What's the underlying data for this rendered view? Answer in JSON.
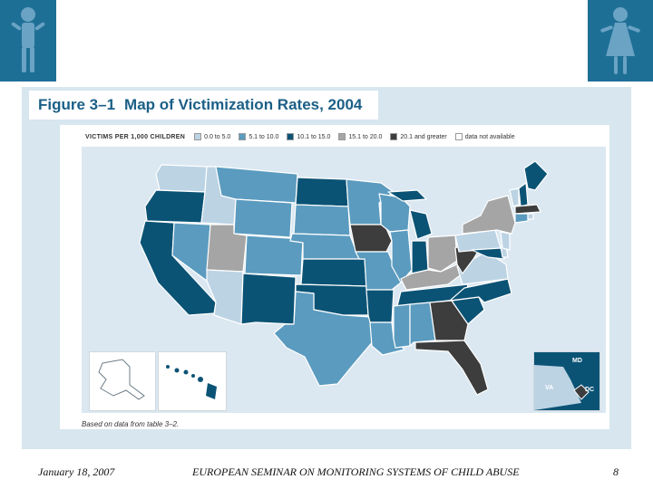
{
  "slide": {
    "footer_date": "January 18, 2007",
    "footer_title": "EUROPEAN SEMINAR ON MONITORING SYSTEMS OF CHILD ABUSE",
    "page_number": "8"
  },
  "figure": {
    "number": "Figure 3–1",
    "title": "Map of Victimization Rates, 2004",
    "legend_header": "VICTIMS PER 1,000 CHILDREN",
    "legend": [
      {
        "label": "0.0 to 5.0",
        "color": "#bcd3e4"
      },
      {
        "label": "5.1 to 10.0",
        "color": "#5b9bbf"
      },
      {
        "label": "10.1 to 15.0",
        "color": "#0b5375"
      },
      {
        "label": "15.1 to 20.0",
        "color": "#a5a5a5"
      },
      {
        "label": "20.1 and greater",
        "color": "#3d3d3d"
      },
      {
        "label": "data not available",
        "color": "#ffffff"
      }
    ],
    "inset_labels": {
      "md": "MD",
      "va": "VA",
      "dc": "DC"
    },
    "source_note": "Based on data from table 3–2."
  },
  "colors": {
    "brand_blue": "#1e6f96",
    "ocean": "#dbe8f1",
    "state_border": "#ffffff"
  }
}
